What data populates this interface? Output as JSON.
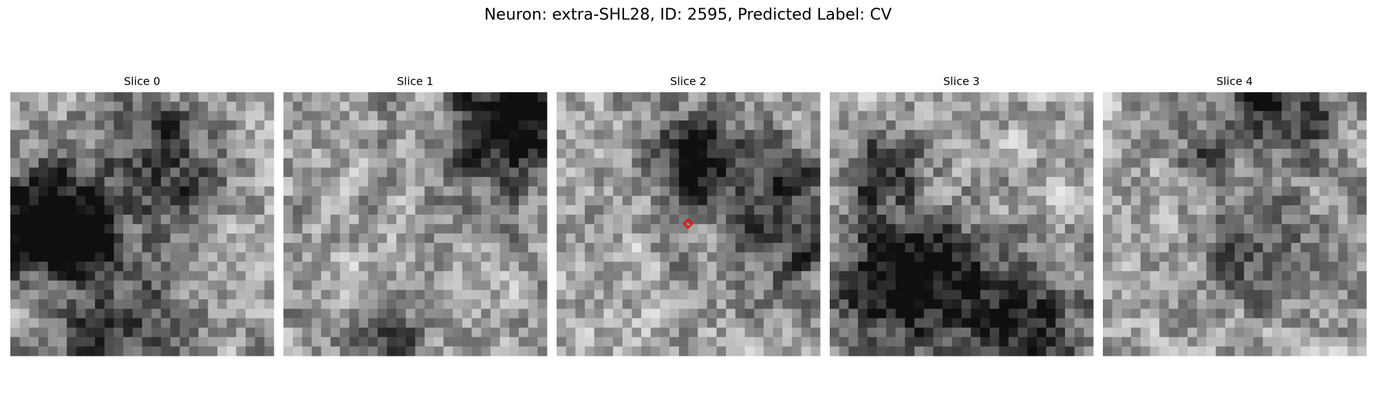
{
  "title": "Neuron: extra-SHL28, ID: 2595, Predicted Label: CV",
  "panels": [
    {
      "title": "Slice 0"
    },
    {
      "title": "Slice 1"
    },
    {
      "title": "Slice 2"
    },
    {
      "title": "Slice 3"
    },
    {
      "title": "Slice 4"
    }
  ]
}
